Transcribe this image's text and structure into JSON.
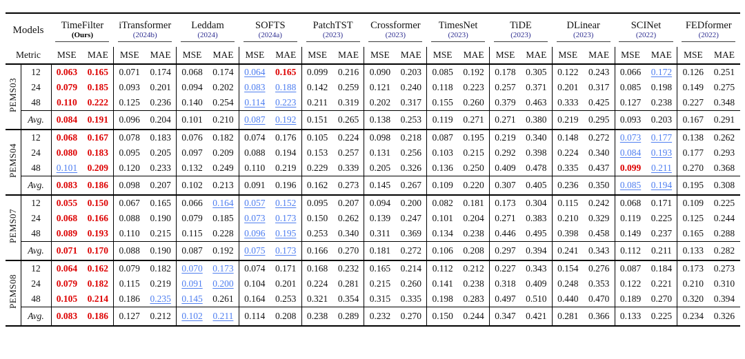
{
  "table": {
    "models_label": "Models",
    "metric_label": "Metric",
    "col_headers": {
      "mse": "MSE",
      "mae": "MAE"
    },
    "colors": {
      "best": "#dd0000",
      "second": "#4e7ef0",
      "year": "#2b2b8f"
    },
    "models": [
      {
        "name": "TimeFilter",
        "sub": "(Ours)",
        "ours": true
      },
      {
        "name": "iTransformer",
        "sub": "(2024b)",
        "ours": false
      },
      {
        "name": "Leddam",
        "sub": "(2024)",
        "ours": false
      },
      {
        "name": "SOFTS",
        "sub": "(2024a)",
        "ours": false
      },
      {
        "name": "PatchTST",
        "sub": "(2023)",
        "ours": false
      },
      {
        "name": "Crossformer",
        "sub": "(2023)",
        "ours": false
      },
      {
        "name": "TimesNet",
        "sub": "(2023)",
        "ours": false
      },
      {
        "name": "TiDE",
        "sub": "(2023)",
        "ours": false
      },
      {
        "name": "DLinear",
        "sub": "(2023)",
        "ours": false
      },
      {
        "name": "SCINet",
        "sub": "(2022)",
        "ours": false
      },
      {
        "name": "FEDformer",
        "sub": "(2022)",
        "ours": false
      }
    ],
    "datasets": [
      {
        "name": "PEMS03",
        "rows": [
          {
            "h": "12",
            "avg": false,
            "v": [
              "0.063",
              "0.165",
              "0.071",
              "0.174",
              "0.068",
              "0.174",
              "0.064",
              "0.165",
              "0.099",
              "0.216",
              "0.090",
              "0.203",
              "0.085",
              "0.192",
              "0.178",
              "0.305",
              "0.122",
              "0.243",
              "0.066",
              "0.172",
              "0.126",
              "0.251"
            ],
            "s": "rr----br-----------b--"
          },
          {
            "h": "24",
            "avg": false,
            "v": [
              "0.079",
              "0.185",
              "0.093",
              "0.201",
              "0.094",
              "0.202",
              "0.083",
              "0.188",
              "0.142",
              "0.259",
              "0.121",
              "0.240",
              "0.118",
              "0.223",
              "0.257",
              "0.371",
              "0.201",
              "0.317",
              "0.085",
              "0.198",
              "0.149",
              "0.275"
            ],
            "s": "rr----bb--------------"
          },
          {
            "h": "48",
            "avg": false,
            "v": [
              "0.110",
              "0.222",
              "0.125",
              "0.236",
              "0.140",
              "0.254",
              "0.114",
              "0.223",
              "0.211",
              "0.319",
              "0.202",
              "0.317",
              "0.155",
              "0.260",
              "0.379",
              "0.463",
              "0.333",
              "0.425",
              "0.127",
              "0.238",
              "0.227",
              "0.348"
            ],
            "s": "rr----bb--------------"
          },
          {
            "h": "Avg.",
            "avg": true,
            "v": [
              "0.084",
              "0.191",
              "0.096",
              "0.204",
              "0.101",
              "0.210",
              "0.087",
              "0.192",
              "0.151",
              "0.265",
              "0.138",
              "0.253",
              "0.119",
              "0.271",
              "0.271",
              "0.380",
              "0.219",
              "0.295",
              "0.093",
              "0.203",
              "0.167",
              "0.291"
            ],
            "s": "rr----bb--------------"
          }
        ]
      },
      {
        "name": "PEMS04",
        "rows": [
          {
            "h": "12",
            "avg": false,
            "v": [
              "0.068",
              "0.167",
              "0.078",
              "0.183",
              "0.076",
              "0.182",
              "0.074",
              "0.176",
              "0.105",
              "0.224",
              "0.098",
              "0.218",
              "0.087",
              "0.195",
              "0.219",
              "0.340",
              "0.148",
              "0.272",
              "0.073",
              "0.177",
              "0.138",
              "0.262"
            ],
            "s": "rr----------------bb--"
          },
          {
            "h": "24",
            "avg": false,
            "v": [
              "0.080",
              "0.183",
              "0.095",
              "0.205",
              "0.097",
              "0.209",
              "0.088",
              "0.194",
              "0.153",
              "0.257",
              "0.131",
              "0.256",
              "0.103",
              "0.215",
              "0.292",
              "0.398",
              "0.224",
              "0.340",
              "0.084",
              "0.193",
              "0.177",
              "0.293"
            ],
            "s": "rr----------------bb--"
          },
          {
            "h": "48",
            "avg": false,
            "v": [
              "0.101",
              "0.209",
              "0.120",
              "0.233",
              "0.132",
              "0.249",
              "0.110",
              "0.219",
              "0.229",
              "0.339",
              "0.205",
              "0.326",
              "0.136",
              "0.250",
              "0.409",
              "0.478",
              "0.335",
              "0.437",
              "0.099",
              "0.211",
              "0.270",
              "0.368"
            ],
            "s": "br----------------rb--"
          },
          {
            "h": "Avg.",
            "avg": true,
            "v": [
              "0.083",
              "0.186",
              "0.098",
              "0.207",
              "0.102",
              "0.213",
              "0.091",
              "0.196",
              "0.162",
              "0.273",
              "0.145",
              "0.267",
              "0.109",
              "0.220",
              "0.307",
              "0.405",
              "0.236",
              "0.350",
              "0.085",
              "0.194",
              "0.195",
              "0.308"
            ],
            "s": "rr----------------bb--"
          }
        ]
      },
      {
        "name": "PEMS07",
        "rows": [
          {
            "h": "12",
            "avg": false,
            "v": [
              "0.055",
              "0.150",
              "0.067",
              "0.165",
              "0.066",
              "0.164",
              "0.057",
              "0.152",
              "0.095",
              "0.207",
              "0.094",
              "0.200",
              "0.082",
              "0.181",
              "0.173",
              "0.304",
              "0.115",
              "0.242",
              "0.068",
              "0.171",
              "0.109",
              "0.225"
            ],
            "s": "rr---bbb--------------"
          },
          {
            "h": "24",
            "avg": false,
            "v": [
              "0.068",
              "0.166",
              "0.088",
              "0.190",
              "0.079",
              "0.185",
              "0.073",
              "0.173",
              "0.150",
              "0.262",
              "0.139",
              "0.247",
              "0.101",
              "0.204",
              "0.271",
              "0.383",
              "0.210",
              "0.329",
              "0.119",
              "0.225",
              "0.125",
              "0.244"
            ],
            "s": "rr----bb--------------"
          },
          {
            "h": "48",
            "avg": false,
            "v": [
              "0.089",
              "0.193",
              "0.110",
              "0.215",
              "0.115",
              "0.228",
              "0.096",
              "0.195",
              "0.253",
              "0.340",
              "0.311",
              "0.369",
              "0.134",
              "0.238",
              "0.446",
              "0.495",
              "0.398",
              "0.458",
              "0.149",
              "0.237",
              "0.165",
              "0.288"
            ],
            "s": "rr----bb--------------"
          },
          {
            "h": "Avg.",
            "avg": true,
            "v": [
              "0.071",
              "0.170",
              "0.088",
              "0.190",
              "0.087",
              "0.192",
              "0.075",
              "0.173",
              "0.166",
              "0.270",
              "0.181",
              "0.272",
              "0.106",
              "0.208",
              "0.297",
              "0.394",
              "0.241",
              "0.343",
              "0.112",
              "0.211",
              "0.133",
              "0.282"
            ],
            "s": "rr----bb--------------"
          }
        ]
      },
      {
        "name": "PEMS08",
        "rows": [
          {
            "h": "12",
            "avg": false,
            "v": [
              "0.064",
              "0.162",
              "0.079",
              "0.182",
              "0.070",
              "0.173",
              "0.074",
              "0.171",
              "0.168",
              "0.232",
              "0.165",
              "0.214",
              "0.112",
              "0.212",
              "0.227",
              "0.343",
              "0.154",
              "0.276",
              "0.087",
              "0.184",
              "0.173",
              "0.273"
            ],
            "s": "rr--bb----------------"
          },
          {
            "h": "24",
            "avg": false,
            "v": [
              "0.079",
              "0.182",
              "0.115",
              "0.219",
              "0.091",
              "0.200",
              "0.104",
              "0.201",
              "0.224",
              "0.281",
              "0.215",
              "0.260",
              "0.141",
              "0.238",
              "0.318",
              "0.409",
              "0.248",
              "0.353",
              "0.122",
              "0.221",
              "0.210",
              "0.310"
            ],
            "s": "rr--bb----------------"
          },
          {
            "h": "48",
            "avg": false,
            "v": [
              "0.105",
              "0.214",
              "0.186",
              "0.235",
              "0.145",
              "0.261",
              "0.164",
              "0.253",
              "0.321",
              "0.354",
              "0.315",
              "0.335",
              "0.198",
              "0.283",
              "0.497",
              "0.510",
              "0.440",
              "0.470",
              "0.189",
              "0.270",
              "0.320",
              "0.394"
            ],
            "s": "rr-bb-----------------"
          },
          {
            "h": "Avg.",
            "avg": true,
            "v": [
              "0.083",
              "0.186",
              "0.127",
              "0.212",
              "0.102",
              "0.211",
              "0.114",
              "0.208",
              "0.238",
              "0.289",
              "0.232",
              "0.270",
              "0.150",
              "0.244",
              "0.347",
              "0.421",
              "0.281",
              "0.366",
              "0.133",
              "0.225",
              "0.234",
              "0.326"
            ],
            "s": "rr--bb----------------"
          }
        ]
      }
    ]
  }
}
